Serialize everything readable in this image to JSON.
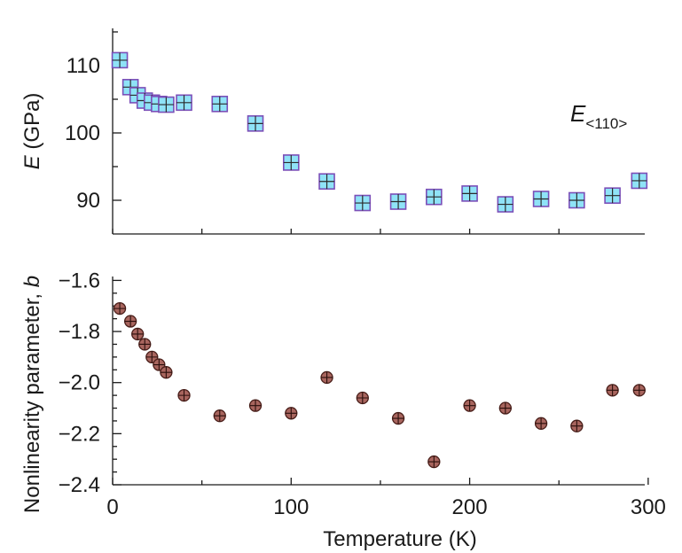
{
  "chart_data": [
    {
      "type": "scatter",
      "title": "",
      "annotation": {
        "base": "E",
        "subscript": "<110>"
      },
      "xlabel": "",
      "ylabel": {
        "italic": "E",
        "rest": " (GPa)"
      },
      "xlim": [
        0,
        310
      ],
      "ylim": [
        85,
        115
      ],
      "yticks_major": [
        90,
        100,
        110
      ],
      "ytick_labels": [
        "90",
        "100",
        "110"
      ],
      "xticks": [
        0,
        50,
        100,
        150,
        200,
        250,
        300
      ],
      "marker": "square-plus",
      "marker_fill": "#8fe3f7",
      "marker_stroke": "#7b4fb8",
      "x": [
        4,
        10,
        14,
        18,
        22,
        26,
        30,
        40,
        60,
        80,
        100,
        120,
        140,
        160,
        180,
        200,
        220,
        240,
        260,
        280,
        295
      ],
      "y": [
        110.8,
        106.8,
        105.6,
        104.8,
        104.5,
        104.3,
        104.2,
        104.5,
        104.3,
        101.4,
        95.6,
        92.8,
        89.6,
        89.8,
        90.5,
        91.0,
        89.4,
        90.2,
        90.0,
        90.7,
        92.9
      ]
    },
    {
      "type": "scatter",
      "title": "",
      "xlabel": "Temperature (K)",
      "ylabel": {
        "rest": "Nonlinearity parameter, ",
        "italic": "b"
      },
      "xlim": [
        0,
        310
      ],
      "ylim": [
        -2.4,
        -1.55
      ],
      "yticks_major": [
        -1.6,
        -1.8,
        -2.0,
        -2.2,
        -2.4
      ],
      "ytick_labels": [
        "−1.6",
        "−1.8",
        "−2.0",
        "−2.2",
        "−2.4"
      ],
      "xticks": [
        0,
        100,
        200,
        300
      ],
      "xtick_labels": [
        "0",
        "100",
        "200",
        "300"
      ],
      "marker": "circle-plus",
      "marker_fill": "#a8655e",
      "marker_stroke": "#4a1f1a",
      "x": [
        4,
        10,
        14,
        18,
        22,
        26,
        30,
        40,
        60,
        80,
        100,
        120,
        140,
        160,
        180,
        200,
        220,
        240,
        260,
        280,
        295
      ],
      "y": [
        -1.71,
        -1.76,
        -1.81,
        -1.85,
        -1.9,
        -1.93,
        -1.96,
        -2.05,
        -2.13,
        -2.09,
        -2.12,
        -1.98,
        -2.06,
        -2.14,
        -2.31,
        -2.09,
        -2.1,
        -2.16,
        -2.17,
        -2.03,
        -2.03
      ]
    }
  ]
}
